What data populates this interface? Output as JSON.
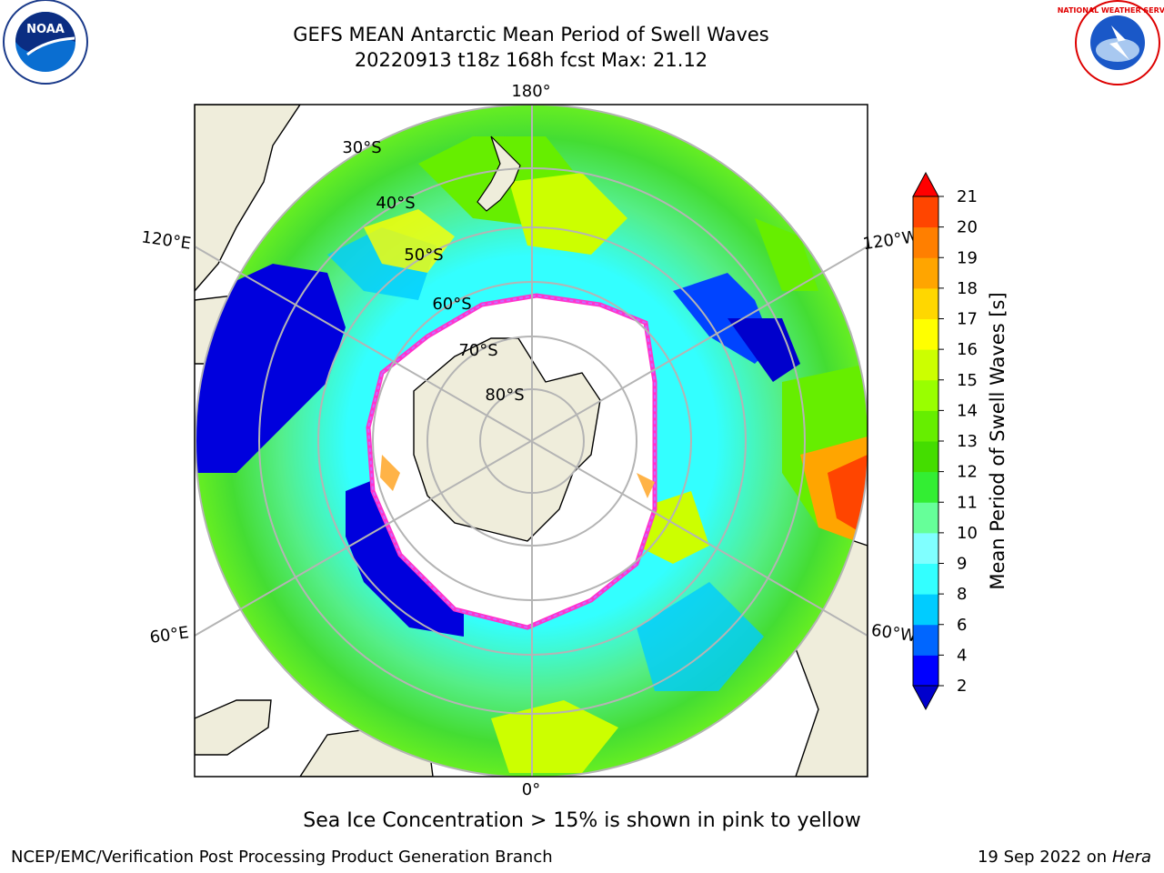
{
  "title": {
    "line1": "GEFS MEAN Antarctic Mean Period of Swell Waves",
    "line2": "20220913 t18z 168h fcst   Max: 21.12"
  },
  "map": {
    "projection": "South Polar Stereographic",
    "longitude_labels": [
      "180°",
      "120°E",
      "120°W",
      "60°E",
      "60°W",
      "0°"
    ],
    "latitude_labels": [
      "30°S",
      "40°S",
      "50°S",
      "60°S",
      "70°S",
      "80°S"
    ],
    "colors": {
      "land": "#efeddb",
      "coast": "#000000",
      "grid": "#b4b4b4"
    }
  },
  "colorbar": {
    "title": "Mean Period of Swell Waves [s]",
    "ticks": [
      "2",
      "4",
      "6",
      "8",
      "9",
      "10",
      "11",
      "12",
      "13",
      "14",
      "15",
      "16",
      "17",
      "18",
      "19",
      "20",
      "21"
    ],
    "colors": [
      "#0000ff",
      "#0066ff",
      "#00ccff",
      "#33ffff",
      "#80ffff",
      "#66ff99",
      "#33ee33",
      "#44dd00",
      "#66ee00",
      "#99ff00",
      "#ccff00",
      "#ffff00",
      "#ffd700",
      "#ffa500",
      "#ff7f00",
      "#ff4500",
      "#ff2000"
    ],
    "under_color": "#0000cc",
    "over_color": "#ff0000"
  },
  "note": "Sea Ice Concentration > 15% is shown in pink to yellow",
  "footer": {
    "left": "NCEP/EMC/Verification Post Processing Product Generation Branch",
    "date": "19 Sep 2022 on",
    "machine": "Hera"
  },
  "logos": {
    "noaa": {
      "text": "NOAA"
    },
    "nws": {
      "text": "NATIONAL WEATHER SERVICE"
    }
  }
}
